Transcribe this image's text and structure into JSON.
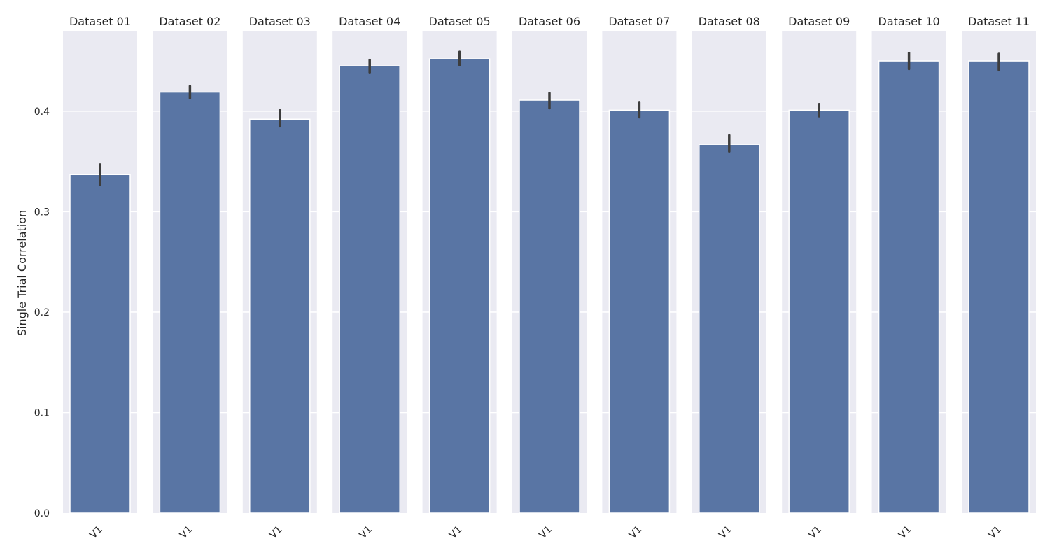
{
  "chart_data": {
    "type": "bar",
    "ylabel": "Single Trial Correlation",
    "ylim": [
      0,
      0.48
    ],
    "yticks": [
      0.0,
      0.1,
      0.2,
      0.3,
      0.4
    ],
    "ytick_labels": [
      "0.0",
      "0.1",
      "0.2",
      "0.3",
      "0.4"
    ],
    "grid": true,
    "bar_color": "#5975a4",
    "panel_background": "#eaeaf2",
    "error_bar_color": "#3d3d3d",
    "panels": [
      {
        "title": "Dataset 01",
        "category": "V1",
        "value": 0.337,
        "err_low": 0.327,
        "err_high": 0.347
      },
      {
        "title": "Dataset 02",
        "category": "V1",
        "value": 0.419,
        "err_low": 0.413,
        "err_high": 0.425
      },
      {
        "title": "Dataset 03",
        "category": "V1",
        "value": 0.392,
        "err_low": 0.385,
        "err_high": 0.401
      },
      {
        "title": "Dataset 04",
        "category": "V1",
        "value": 0.445,
        "err_low": 0.438,
        "err_high": 0.451
      },
      {
        "title": "Dataset 05",
        "category": "V1",
        "value": 0.452,
        "err_low": 0.446,
        "err_high": 0.459
      },
      {
        "title": "Dataset 06",
        "category": "V1",
        "value": 0.411,
        "err_low": 0.403,
        "err_high": 0.418
      },
      {
        "title": "Dataset 07",
        "category": "V1",
        "value": 0.401,
        "err_low": 0.394,
        "err_high": 0.409
      },
      {
        "title": "Dataset 08",
        "category": "V1",
        "value": 0.367,
        "err_low": 0.36,
        "err_high": 0.376
      },
      {
        "title": "Dataset 09",
        "category": "V1",
        "value": 0.401,
        "err_low": 0.395,
        "err_high": 0.407
      },
      {
        "title": "Dataset 10",
        "category": "V1",
        "value": 0.45,
        "err_low": 0.442,
        "err_high": 0.458
      },
      {
        "title": "Dataset 11",
        "category": "V1",
        "value": 0.45,
        "err_low": 0.441,
        "err_high": 0.457
      }
    ]
  }
}
